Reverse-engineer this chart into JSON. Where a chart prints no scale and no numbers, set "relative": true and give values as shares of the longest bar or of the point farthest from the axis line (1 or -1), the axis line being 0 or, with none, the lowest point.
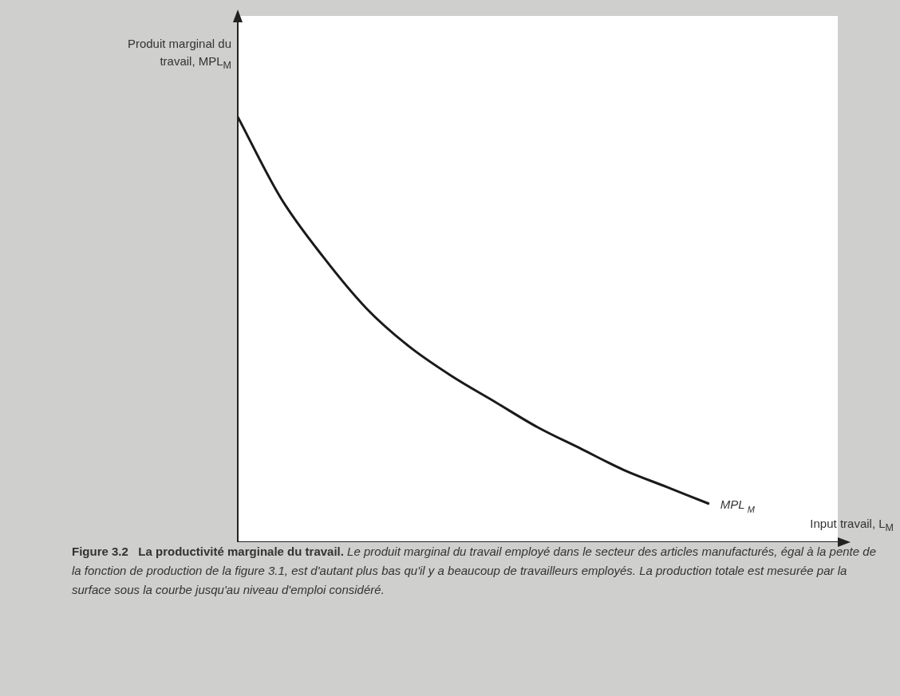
{
  "chart_data": {
    "type": "line",
    "relative": true,
    "title": "Figure 3.2   La productivité marginale du travail.",
    "annotations": [
      "Le produit marginal du travail employé dans le secteur des articles manufacturés, égal à la pente de la fonction de production de la figure 3.1, est d'autant plus bas qu'il y a beaucoup de travailleurs employés. La production totale est mesurée par la surface sous la courbe jusqu'au niveau d'emploi considéré."
    ],
    "ylabel": "Produit marginal du travail, MPL$_{M}$",
    "xlabel": "Input travail, L$_{M}$",
    "categories": [
      null,
      null,
      null,
      null,
      null,
      null,
      null,
      null,
      null,
      null,
      null,
      null,
      null,
      null,
      null
    ],
    "series": [
      {
        "name": "MPL$_{M}$",
        "color": "#1a1a1a",
        "values": [
          1,
          0.81,
          0.67,
          0.55,
          0.46,
          0.39,
          0.33,
          0.27,
          0.22,
          0.17,
          0.13,
          0.09,
          null,
          null,
          null
        ]
      }
    ],
    "grid": false,
    "legend": false,
    "marker": "none",
    "line_style": "solid"
  }
}
